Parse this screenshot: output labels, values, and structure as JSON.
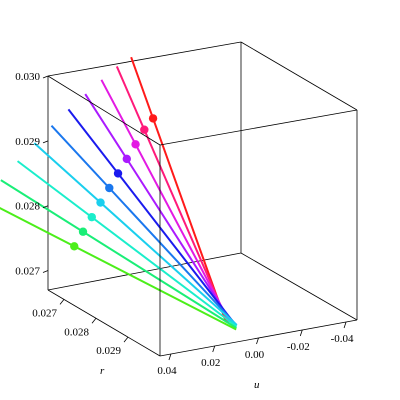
{
  "chart_data": {
    "type": "line3d",
    "title": "",
    "axes": {
      "z": {
        "label": "",
        "range": [
          0.0267,
          0.03
        ],
        "ticks": [
          "0.027",
          "0.028",
          "0.029",
          "0.030"
        ]
      },
      "r": {
        "label": "r",
        "range": [
          0.0265,
          0.03
        ],
        "ticks": [
          "0.027",
          "0.028",
          "0.029"
        ]
      },
      "u": {
        "label": "u",
        "range": [
          -0.045,
          0.045
        ],
        "ticks": [
          "0.04",
          "0.02",
          "0.00",
          "-0.02",
          "-0.04"
        ]
      }
    },
    "grid": false,
    "legend": "none",
    "series": [
      {
        "color": "#ff1a1a",
        "marker": {
          "u": -0.003,
          "r": 0.0265,
          "z": 0.02905
        }
      },
      {
        "color": "#ff1a7a",
        "marker": {
          "u": 0.001,
          "r": 0.0265,
          "z": 0.0289
        }
      },
      {
        "color": "#e31ae3",
        "marker": {
          "u": 0.005,
          "r": 0.0265,
          "z": 0.0287
        }
      },
      {
        "color": "#aa1aff",
        "marker": {
          "u": 0.009,
          "r": 0.0265,
          "z": 0.0285
        }
      },
      {
        "color": "#1a1aee",
        "marker": {
          "u": 0.013,
          "r": 0.0265,
          "z": 0.0283
        }
      },
      {
        "color": "#1a77ee",
        "marker": {
          "u": 0.017,
          "r": 0.0265,
          "z": 0.0281
        }
      },
      {
        "color": "#1acfee",
        "marker": {
          "u": 0.021,
          "r": 0.0265,
          "z": 0.0279
        }
      },
      {
        "color": "#1aeecb",
        "marker": {
          "u": 0.025,
          "r": 0.0265,
          "z": 0.0277
        }
      },
      {
        "color": "#1aee77",
        "marker": {
          "u": 0.029,
          "r": 0.0265,
          "z": 0.0275
        }
      },
      {
        "color": "#4cee1a",
        "marker": {
          "u": 0.033,
          "r": 0.0265,
          "z": 0.0273
        }
      }
    ]
  }
}
